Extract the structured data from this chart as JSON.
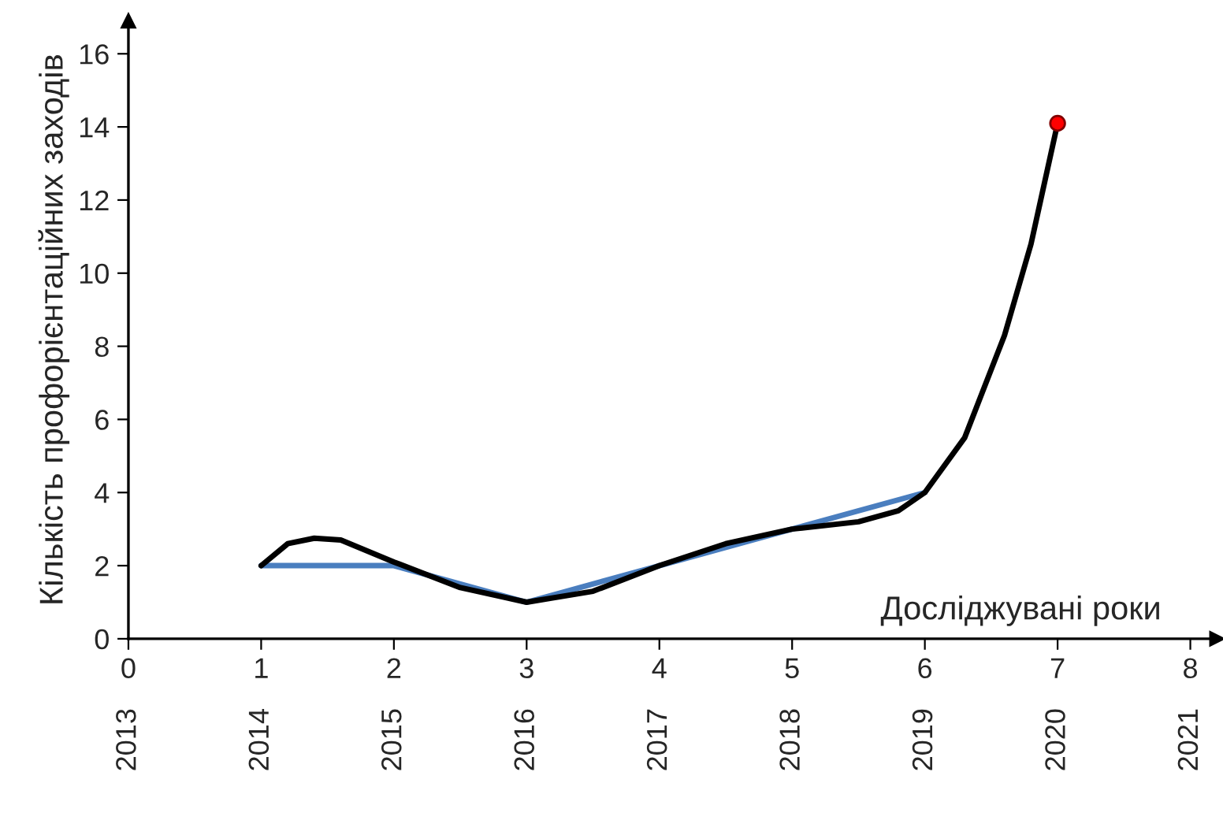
{
  "chart_data": {
    "type": "line",
    "xlabel": "Досліджувані роки",
    "ylabel": "Кількість профорієнтаційних заходів",
    "xlim": [
      0,
      8.2
    ],
    "xticks": [
      0,
      1,
      2,
      3,
      4,
      5,
      6,
      7,
      8
    ],
    "x2lim": [
      2013,
      2021.2
    ],
    "x2ticks": [
      2013,
      2014,
      2015,
      2016,
      2017,
      2018,
      2019,
      2020,
      2021
    ],
    "ylim": [
      0,
      16.9
    ],
    "yticks": [
      0,
      2,
      4,
      6,
      8,
      10,
      12,
      14,
      16
    ],
    "grid": false,
    "marker": "none",
    "line_style": "solid",
    "series": [
      {
        "color": "#4a7ebf",
        "x": [
          1,
          2,
          3,
          4,
          5,
          6
        ],
        "values": [
          2,
          2,
          1,
          2,
          3,
          4
        ]
      },
      {
        "color": "#000000",
        "x": [
          1,
          1.2,
          1.4,
          1.6,
          2,
          2.5,
          3,
          3.5,
          4,
          4.5,
          5,
          5.5,
          5.8,
          6,
          6.3,
          6.6,
          6.8,
          7
        ],
        "values": [
          2,
          2.6,
          2.75,
          2.7,
          2.1,
          1.4,
          1,
          1.3,
          2,
          2.6,
          3,
          3.2,
          3.5,
          4,
          5.5,
          8.3,
          10.8,
          14.1
        ]
      },
      {
        "type": "scatter",
        "marker": "circle",
        "color": "#ff0000",
        "x": [
          7
        ],
        "values": [
          14.1
        ]
      }
    ]
  }
}
